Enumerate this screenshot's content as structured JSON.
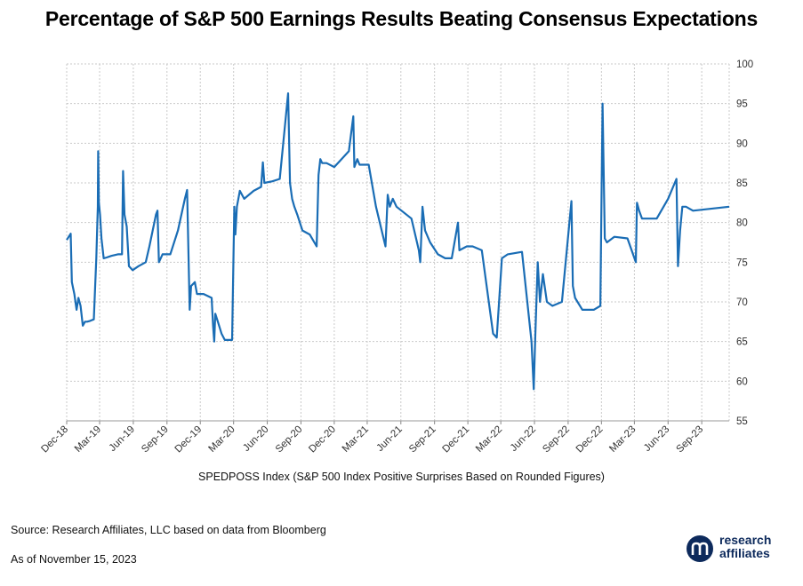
{
  "chart_data": {
    "type": "line",
    "title": "Percentage of S&P 500 Earnings Results Beating Consensus Expectations",
    "legend": "SPEDPOSS Index (S&P 500 Index Positive Surprises Based on Rounded Figures)",
    "legend_position": "bottom",
    "grid": true,
    "x_range": [
      "2018-12-01",
      "2023-11-15"
    ],
    "ylim": [
      55,
      100
    ],
    "y_ticks": [
      55,
      60,
      65,
      70,
      75,
      80,
      85,
      90,
      95,
      100
    ],
    "y_axis_side": "right",
    "x_ticks": [
      {
        "label": "Dec-18",
        "date": "2018-12-01"
      },
      {
        "label": "Mar-19",
        "date": "2019-03-01"
      },
      {
        "label": "Jun-19",
        "date": "2019-06-01"
      },
      {
        "label": "Sep-19",
        "date": "2019-09-01"
      },
      {
        "label": "Dec-19",
        "date": "2019-12-01"
      },
      {
        "label": "Mar-20",
        "date": "2020-03-01"
      },
      {
        "label": "Jun-20",
        "date": "2020-06-01"
      },
      {
        "label": "Sep-20",
        "date": "2020-09-01"
      },
      {
        "label": "Dec-20",
        "date": "2020-12-01"
      },
      {
        "label": "Mar-21",
        "date": "2021-03-01"
      },
      {
        "label": "Jun-21",
        "date": "2021-06-01"
      },
      {
        "label": "Sep-21",
        "date": "2021-09-01"
      },
      {
        "label": "Dec-21",
        "date": "2021-12-01"
      },
      {
        "label": "Mar-22",
        "date": "2022-03-01"
      },
      {
        "label": "Jun-22",
        "date": "2022-06-01"
      },
      {
        "label": "Sep-22",
        "date": "2022-09-01"
      },
      {
        "label": "Dec-22",
        "date": "2022-12-01"
      },
      {
        "label": "Mar-23",
        "date": "2023-03-01"
      },
      {
        "label": "Jun-23",
        "date": "2023-06-01"
      },
      {
        "label": "Sep-23",
        "date": "2023-09-01"
      }
    ],
    "series": [
      {
        "color": "#1a6db5",
        "points": [
          [
            "2018-12-01",
            77.8
          ],
          [
            "2018-12-12",
            78.6
          ],
          [
            "2018-12-15",
            72.5
          ],
          [
            "2018-12-22",
            71.0
          ],
          [
            "2018-12-28",
            69.0
          ],
          [
            "2019-01-02",
            70.5
          ],
          [
            "2019-01-08",
            69.5
          ],
          [
            "2019-01-14",
            67.0
          ],
          [
            "2019-01-20",
            67.5
          ],
          [
            "2019-01-26",
            67.5
          ],
          [
            "2019-02-03",
            67.6
          ],
          [
            "2019-02-13",
            67.8
          ],
          [
            "2019-02-20",
            75.5
          ],
          [
            "2019-02-24",
            82.0
          ],
          [
            "2019-02-25",
            89.0
          ],
          [
            "2019-02-27",
            82.5
          ],
          [
            "2019-03-02",
            81.0
          ],
          [
            "2019-03-06",
            78.0
          ],
          [
            "2019-03-12",
            75.5
          ],
          [
            "2019-03-20",
            75.6
          ],
          [
            "2019-04-02",
            75.8
          ],
          [
            "2019-04-20",
            76.0
          ],
          [
            "2019-05-01",
            76.0
          ],
          [
            "2019-05-04",
            86.5
          ],
          [
            "2019-05-08",
            81.0
          ],
          [
            "2019-05-14",
            79.5
          ],
          [
            "2019-05-20",
            74.5
          ],
          [
            "2019-05-30",
            74.0
          ],
          [
            "2019-06-15",
            74.5
          ],
          [
            "2019-07-05",
            75.0
          ],
          [
            "2019-07-15",
            77.0
          ],
          [
            "2019-08-02",
            81.0
          ],
          [
            "2019-08-06",
            81.5
          ],
          [
            "2019-08-10",
            75.0
          ],
          [
            "2019-08-20",
            76.0
          ],
          [
            "2019-09-10",
            76.0
          ],
          [
            "2019-10-01",
            79.0
          ],
          [
            "2019-10-20",
            83.0
          ],
          [
            "2019-10-26",
            84.1
          ],
          [
            "2019-11-02",
            69.0
          ],
          [
            "2019-11-06",
            72.0
          ],
          [
            "2019-11-16",
            72.5
          ],
          [
            "2019-11-22",
            71.0
          ],
          [
            "2019-12-10",
            71.0
          ],
          [
            "2020-01-01",
            70.5
          ],
          [
            "2020-01-05",
            67.0
          ],
          [
            "2020-01-08",
            65.0
          ],
          [
            "2020-01-11",
            68.5
          ],
          [
            "2020-01-18",
            67.5
          ],
          [
            "2020-01-28",
            66.0
          ],
          [
            "2020-02-06",
            65.2
          ],
          [
            "2020-02-26",
            65.2
          ],
          [
            "2020-03-03",
            82.0
          ],
          [
            "2020-03-06",
            78.5
          ],
          [
            "2020-03-10",
            82.0
          ],
          [
            "2020-03-18",
            84.0
          ],
          [
            "2020-03-30",
            83.0
          ],
          [
            "2020-04-25",
            84.0
          ],
          [
            "2020-05-15",
            84.5
          ],
          [
            "2020-05-20",
            87.6
          ],
          [
            "2020-05-24",
            85.0
          ],
          [
            "2020-06-15",
            85.2
          ],
          [
            "2020-07-05",
            85.5
          ],
          [
            "2020-07-28",
            96.3
          ],
          [
            "2020-08-02",
            85.0
          ],
          [
            "2020-08-08",
            83.0
          ],
          [
            "2020-08-14",
            82.0
          ],
          [
            "2020-08-22",
            81.0
          ],
          [
            "2020-09-05",
            79.0
          ],
          [
            "2020-09-25",
            78.5
          ],
          [
            "2020-10-14",
            77.0
          ],
          [
            "2020-10-19",
            86.0
          ],
          [
            "2020-10-24",
            88.0
          ],
          [
            "2020-10-29",
            87.5
          ],
          [
            "2020-11-10",
            87.5
          ],
          [
            "2020-12-01",
            87.0
          ],
          [
            "2021-01-10",
            89.0
          ],
          [
            "2021-01-22",
            93.4
          ],
          [
            "2021-01-25",
            87.0
          ],
          [
            "2021-02-02",
            88.0
          ],
          [
            "2021-02-08",
            87.3
          ],
          [
            "2021-03-05",
            87.3
          ],
          [
            "2021-03-25",
            82.0
          ],
          [
            "2021-04-20",
            77.0
          ],
          [
            "2021-04-26",
            83.5
          ],
          [
            "2021-05-02",
            82.0
          ],
          [
            "2021-05-10",
            83.0
          ],
          [
            "2021-05-20",
            82.0
          ],
          [
            "2021-06-30",
            80.5
          ],
          [
            "2021-07-20",
            76.5
          ],
          [
            "2021-07-24",
            75.0
          ],
          [
            "2021-07-30",
            82.0
          ],
          [
            "2021-08-06",
            79.0
          ],
          [
            "2021-08-20",
            77.5
          ],
          [
            "2021-09-10",
            76.0
          ],
          [
            "2021-09-30",
            75.5
          ],
          [
            "2021-10-18",
            75.5
          ],
          [
            "2021-11-04",
            80.0
          ],
          [
            "2021-11-08",
            76.5
          ],
          [
            "2021-11-28",
            77.0
          ],
          [
            "2021-12-14",
            77.0
          ],
          [
            "2022-01-08",
            76.5
          ],
          [
            "2022-02-08",
            66.0
          ],
          [
            "2022-02-18",
            65.5
          ],
          [
            "2022-03-04",
            75.5
          ],
          [
            "2022-03-20",
            76.0
          ],
          [
            "2022-04-28",
            76.3
          ],
          [
            "2022-05-24",
            65.0
          ],
          [
            "2022-05-30",
            59.0
          ],
          [
            "2022-06-03",
            65.5
          ],
          [
            "2022-06-10",
            75.0
          ],
          [
            "2022-06-16",
            70.0
          ],
          [
            "2022-06-24",
            73.5
          ],
          [
            "2022-07-05",
            70.0
          ],
          [
            "2022-07-20",
            69.5
          ],
          [
            "2022-08-15",
            70.0
          ],
          [
            "2022-09-10",
            82.7
          ],
          [
            "2022-09-14",
            72.0
          ],
          [
            "2022-09-20",
            70.5
          ],
          [
            "2022-10-10",
            69.0
          ],
          [
            "2022-11-10",
            69.0
          ],
          [
            "2022-11-28",
            69.5
          ],
          [
            "2022-12-04",
            95.0
          ],
          [
            "2022-12-10",
            78.0
          ],
          [
            "2022-12-16",
            77.5
          ],
          [
            "2023-01-05",
            78.2
          ],
          [
            "2023-02-10",
            78.0
          ],
          [
            "2023-03-05",
            75.0
          ],
          [
            "2023-03-08",
            82.5
          ],
          [
            "2023-03-14",
            81.5
          ],
          [
            "2023-03-22",
            80.5
          ],
          [
            "2023-05-01",
            80.5
          ],
          [
            "2023-06-01",
            83.0
          ],
          [
            "2023-06-24",
            85.5
          ],
          [
            "2023-06-28",
            74.5
          ],
          [
            "2023-07-04",
            79.0
          ],
          [
            "2023-07-10",
            82.0
          ],
          [
            "2023-07-20",
            82.0
          ],
          [
            "2023-08-08",
            81.5
          ],
          [
            "2023-11-15",
            82.0
          ]
        ]
      }
    ]
  },
  "notes": {
    "source": "Source: Research Affiliates, LLC based on data from Bloomberg",
    "as_of": "As of November 15, 2023"
  },
  "logo": {
    "line1": "research",
    "line2": "affiliates",
    "color": "#0d2a5c"
  }
}
